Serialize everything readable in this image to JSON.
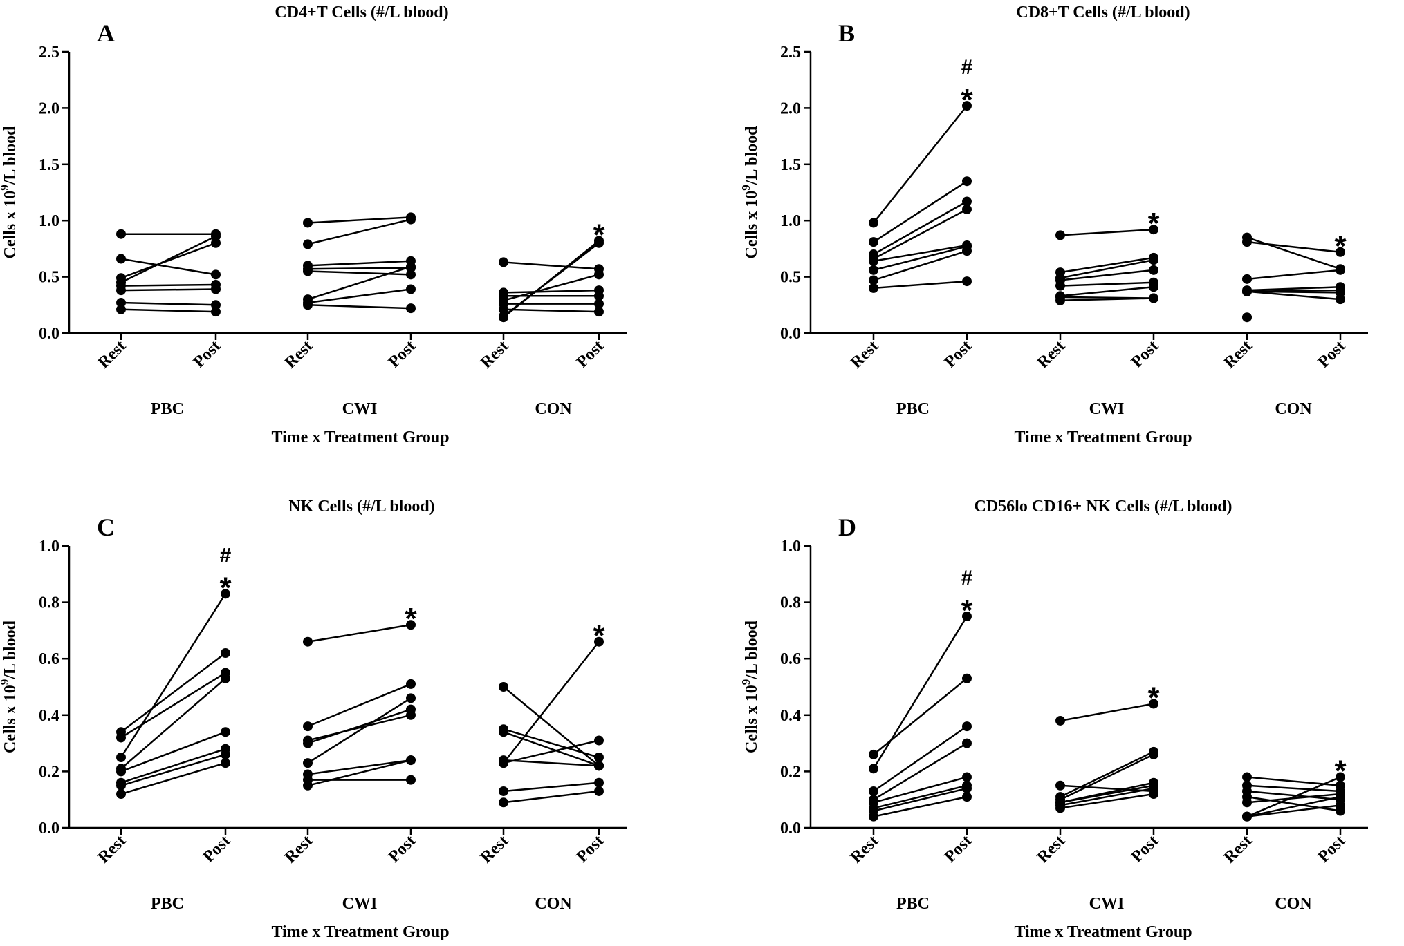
{
  "chart_data": [
    {
      "type": "line",
      "letter": "A",
      "title": "CD4+T Cells (#/L blood)",
      "ylabel": "Cells x 10^9/L blood",
      "xlabel": "Time x Treatment Group",
      "ylim": [
        0,
        2.5
      ],
      "yticks": [
        "0.0",
        "0.5",
        "1.0",
        "1.5",
        "2.0",
        "2.5"
      ],
      "categories": [
        "Rest",
        "Post",
        "Rest",
        "Post",
        "Rest",
        "Post"
      ],
      "groups": [
        "PBC",
        "CWI",
        "CON"
      ],
      "group_data": [
        {
          "group": "PBC",
          "pairs": [
            [
              0.88,
              0.88
            ],
            [
              0.66,
              0.52
            ],
            [
              0.49,
              0.8
            ],
            [
              0.45,
              0.86
            ],
            [
              0.42,
              0.43
            ],
            [
              0.38,
              0.39
            ],
            [
              0.27,
              0.25
            ],
            [
              0.21,
              0.19
            ]
          ],
          "annotations": []
        },
        {
          "group": "CWI",
          "pairs": [
            [
              0.98,
              1.03
            ],
            [
              0.79,
              1.01
            ],
            [
              0.6,
              0.64
            ],
            [
              0.57,
              0.58
            ],
            [
              0.55,
              0.52
            ],
            [
              0.3,
              0.59
            ],
            [
              0.27,
              0.39
            ],
            [
              0.25,
              0.22
            ]
          ],
          "annotations": []
        },
        {
          "group": "CON",
          "pairs": [
            [
              0.63,
              0.57
            ],
            [
              0.36,
              0.38
            ],
            [
              0.33,
              0.33
            ],
            [
              0.29,
              0.52
            ],
            [
              0.26,
              0.26
            ],
            [
              0.21,
              0.19
            ],
            [
              0.15,
              0.8
            ],
            [
              0.14,
              0.82
            ]
          ],
          "annotations": [
            "*"
          ]
        }
      ]
    },
    {
      "type": "line",
      "letter": "B",
      "title": "CD8+T Cells (#/L blood)",
      "ylabel": "Cells x 10^9/L blood",
      "xlabel": "Time x Treatment Group",
      "ylim": [
        0,
        2.5
      ],
      "yticks": [
        "0.0",
        "0.5",
        "1.0",
        "1.5",
        "2.0",
        "2.5"
      ],
      "categories": [
        "Rest",
        "Post",
        "Rest",
        "Post",
        "Rest",
        "Post"
      ],
      "groups": [
        "PBC",
        "CWI",
        "CON"
      ],
      "group_data": [
        {
          "group": "PBC",
          "pairs": [
            [
              0.98,
              2.02
            ],
            [
              0.81,
              1.35
            ],
            [
              0.7,
              1.17
            ],
            [
              0.66,
              1.1
            ],
            [
              0.64,
              0.78
            ],
            [
              0.56,
              0.77
            ],
            [
              0.47,
              0.73
            ],
            [
              0.4,
              0.46
            ]
          ],
          "annotations": [
            "#",
            "*"
          ]
        },
        {
          "group": "CWI",
          "pairs": [
            [
              0.87,
              0.92
            ],
            [
              0.54,
              0.67
            ],
            [
              0.49,
              0.65
            ],
            [
              0.47,
              0.56
            ],
            [
              0.42,
              0.45
            ],
            [
              0.33,
              0.41
            ],
            [
              0.32,
              0.31
            ],
            [
              0.29,
              0.31
            ]
          ],
          "annotations": [
            "*"
          ]
        },
        {
          "group": "CON",
          "pairs": [
            [
              0.85,
              0.57
            ],
            [
              0.81,
              0.72
            ],
            [
              0.48,
              0.56
            ],
            [
              0.38,
              0.41
            ],
            [
              0.37,
              0.38
            ],
            [
              0.37,
              0.36
            ],
            [
              0.37,
              0.3
            ],
            [
              0.14,
              null
            ]
          ],
          "annotations": [
            "*"
          ]
        }
      ]
    },
    {
      "type": "line",
      "letter": "C",
      "title": "NK Cells (#/L blood)",
      "ylabel": "Cells x 10^9/L blood",
      "xlabel": "Time x Treatment Group",
      "ylim": [
        0,
        1.0
      ],
      "yticks": [
        "0.0",
        "0.2",
        "0.4",
        "0.6",
        "0.8",
        "1.0"
      ],
      "categories": [
        "Rest",
        "Post",
        "Rest",
        "Post",
        "Rest",
        "Post"
      ],
      "groups": [
        "PBC",
        "CWI",
        "CON"
      ],
      "group_data": [
        {
          "group": "PBC",
          "pairs": [
            [
              0.34,
              0.62
            ],
            [
              0.32,
              0.55
            ],
            [
              0.25,
              0.83
            ],
            [
              0.21,
              0.53
            ],
            [
              0.2,
              0.34
            ],
            [
              0.16,
              0.28
            ],
            [
              0.15,
              0.26
            ],
            [
              0.12,
              0.23
            ]
          ],
          "annotations": [
            "#",
            "*"
          ]
        },
        {
          "group": "CWI",
          "pairs": [
            [
              0.66,
              0.72
            ],
            [
              0.36,
              0.51
            ],
            [
              0.31,
              0.4
            ],
            [
              0.3,
              0.42
            ],
            [
              0.23,
              0.46
            ],
            [
              0.19,
              0.24
            ],
            [
              0.17,
              0.17
            ],
            [
              0.15,
              0.24
            ]
          ],
          "annotations": [
            "*"
          ]
        },
        {
          "group": "CON",
          "pairs": [
            [
              0.5,
              0.22
            ],
            [
              0.35,
              0.25
            ],
            [
              0.34,
              0.22
            ],
            [
              0.24,
              0.22
            ],
            [
              0.23,
              0.66
            ],
            [
              0.23,
              0.31
            ],
            [
              0.13,
              0.16
            ],
            [
              0.09,
              0.13
            ]
          ],
          "annotations": [
            "*"
          ]
        }
      ]
    },
    {
      "type": "line",
      "letter": "D",
      "title": "CD56lo CD16+ NK Cells (#/L blood)",
      "ylabel": "Cells x 10^9/L blood",
      "xlabel": "Time x Treatment Group",
      "ylim": [
        0,
        1.0
      ],
      "yticks": [
        "0.0",
        "0.2",
        "0.4",
        "0.6",
        "0.8",
        "1.0"
      ],
      "categories": [
        "Rest",
        "Post",
        "Rest",
        "Post",
        "Rest",
        "Post"
      ],
      "groups": [
        "PBC",
        "CWI",
        "CON"
      ],
      "group_data": [
        {
          "group": "PBC",
          "pairs": [
            [
              0.26,
              0.53
            ],
            [
              0.21,
              0.75
            ],
            [
              0.13,
              0.36
            ],
            [
              0.1,
              0.3
            ],
            [
              0.09,
              0.18
            ],
            [
              0.07,
              0.15
            ],
            [
              0.06,
              0.14
            ],
            [
              0.04,
              0.11
            ]
          ],
          "annotations": [
            "#",
            "*"
          ]
        },
        {
          "group": "CWI",
          "pairs": [
            [
              0.38,
              0.44
            ],
            [
              0.15,
              0.13
            ],
            [
              0.11,
              0.27
            ],
            [
              0.1,
              0.26
            ],
            [
              0.09,
              0.16
            ],
            [
              0.09,
              0.15
            ],
            [
              0.08,
              0.14
            ],
            [
              0.07,
              0.12
            ]
          ],
          "annotations": [
            "*"
          ]
        },
        {
          "group": "CON",
          "pairs": [
            [
              0.18,
              0.15
            ],
            [
              0.15,
              0.13
            ],
            [
              0.13,
              0.1
            ],
            [
              0.11,
              0.06
            ],
            [
              0.09,
              0.12
            ],
            [
              0.04,
              0.18
            ],
            [
              0.04,
              0.11
            ],
            [
              0.04,
              0.08
            ]
          ],
          "annotations": [
            "*"
          ]
        }
      ]
    }
  ]
}
